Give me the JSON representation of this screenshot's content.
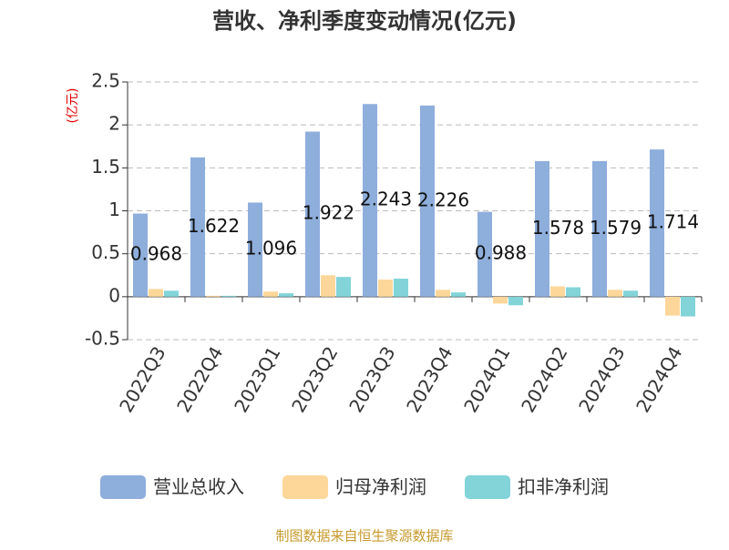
{
  "chart_data": {
    "type": "bar",
    "title": "营收、净利季度变动情况(亿元)",
    "y_label": "(亿元)",
    "categories": [
      "2022Q3",
      "2022Q4",
      "2023Q1",
      "2023Q2",
      "2023Q3",
      "2023Q4",
      "2024Q1",
      "2024Q2",
      "2024Q3",
      "2024Q4"
    ],
    "series": [
      {
        "name": "营业总收入",
        "color": "#8eaedc",
        "values": [
          0.968,
          1.622,
          1.096,
          1.922,
          2.243,
          2.226,
          0.988,
          1.578,
          1.579,
          1.714
        ],
        "show_labels": true
      },
      {
        "name": "归母净利润",
        "color": "#fdd79a",
        "values": [
          0.09,
          0.01,
          0.06,
          0.25,
          0.2,
          0.08,
          -0.08,
          0.12,
          0.08,
          -0.22
        ]
      },
      {
        "name": "扣非净利润",
        "color": "#82d4d8",
        "values": [
          0.07,
          0.01,
          0.04,
          0.23,
          0.21,
          0.05,
          -0.1,
          0.11,
          0.07,
          -0.23
        ]
      }
    ],
    "ylim": [
      -0.5,
      2.5
    ],
    "yticks": [
      -0.5,
      0,
      0.5,
      1,
      1.5,
      2,
      2.5
    ],
    "grid": true,
    "legend": "bottom",
    "source": "制图数据来自恒生聚源数据库"
  }
}
